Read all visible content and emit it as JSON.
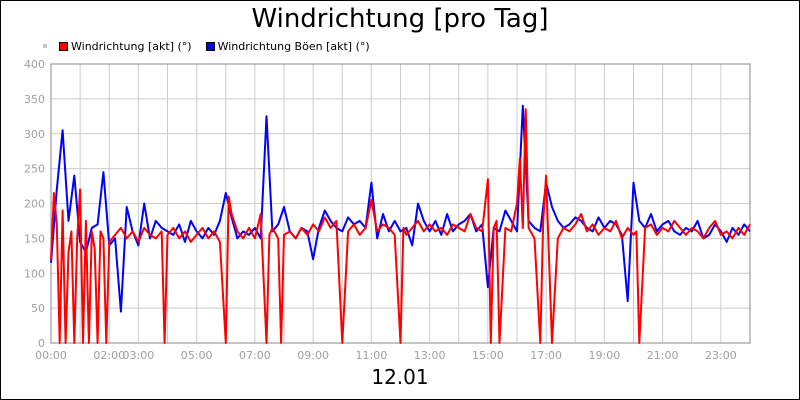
{
  "chart_data": {
    "type": "line",
    "title": "Windrichtung [pro Tag]",
    "xlabel": "12.01",
    "ylabel": "",
    "ylim": [
      0,
      400
    ],
    "yticks": [
      0,
      50,
      100,
      150,
      200,
      250,
      300,
      350,
      400
    ],
    "xlim": [
      "00:00",
      "24:00"
    ],
    "xtick_labels": [
      "00:00",
      "02:00",
      "03:00",
      "05:00",
      "07:00",
      "09:00",
      "11:00",
      "13:00",
      "15:00",
      "17:00",
      "19:00",
      "21:00",
      "23:00"
    ],
    "xtick_hours": [
      0,
      2,
      3,
      5,
      7,
      9,
      11,
      13,
      15,
      17,
      19,
      21,
      23
    ],
    "grid": true,
    "legend_position": "top-left",
    "series": [
      {
        "name": "Windrichtung [akt] (°)",
        "color": "#ff0000",
        "x": [
          0,
          0.1,
          0.2,
          0.3,
          0.4,
          0.5,
          0.6,
          0.7,
          0.8,
          0.9,
          1.0,
          1.1,
          1.2,
          1.3,
          1.4,
          1.5,
          1.6,
          1.7,
          1.8,
          1.9,
          2.0,
          2.2,
          2.4,
          2.6,
          2.8,
          3.0,
          3.2,
          3.4,
          3.6,
          3.8,
          3.9,
          4.0,
          4.2,
          4.4,
          4.6,
          4.8,
          5.0,
          5.2,
          5.4,
          5.6,
          5.8,
          6.0,
          6.1,
          6.2,
          6.4,
          6.6,
          6.8,
          7.0,
          7.2,
          7.4,
          7.5,
          7.6,
          7.8,
          7.9,
          8.0,
          8.2,
          8.4,
          8.6,
          8.8,
          9.0,
          9.2,
          9.4,
          9.6,
          9.8,
          10.0,
          10.2,
          10.4,
          10.6,
          10.8,
          11.0,
          11.2,
          11.4,
          11.6,
          11.8,
          12.0,
          12.1,
          12.2,
          12.4,
          12.6,
          12.8,
          13.0,
          13.2,
          13.4,
          13.6,
          13.8,
          14.0,
          14.2,
          14.4,
          14.6,
          14.8,
          15.0,
          15.1,
          15.2,
          15.3,
          15.4,
          15.6,
          15.8,
          16.0,
          16.1,
          16.2,
          16.3,
          16.4,
          16.6,
          16.8,
          16.9,
          17.0,
          17.2,
          17.4,
          17.6,
          17.8,
          18.0,
          18.2,
          18.4,
          18.6,
          18.8,
          19.0,
          19.2,
          19.4,
          19.6,
          19.8,
          20.0,
          20.1,
          20.2,
          20.4,
          20.6,
          20.8,
          21.0,
          21.2,
          21.4,
          21.6,
          21.8,
          22.0,
          22.2,
          22.4,
          22.6,
          22.8,
          23.0,
          23.2,
          23.4,
          23.6,
          23.8,
          24.0
        ],
        "values": [
          120,
          215,
          170,
          0,
          190,
          0,
          130,
          160,
          0,
          150,
          220,
          0,
          175,
          0,
          160,
          135,
          0,
          160,
          150,
          0,
          145,
          155,
          165,
          150,
          160,
          145,
          165,
          155,
          150,
          160,
          0,
          155,
          165,
          150,
          160,
          145,
          155,
          165,
          150,
          160,
          145,
          0,
          210,
          185,
          160,
          150,
          165,
          150,
          185,
          0,
          155,
          165,
          150,
          0,
          155,
          160,
          150,
          165,
          155,
          170,
          160,
          180,
          165,
          175,
          0,
          160,
          170,
          155,
          165,
          205,
          160,
          170,
          165,
          155,
          0,
          165,
          155,
          165,
          175,
          160,
          170,
          160,
          165,
          155,
          170,
          165,
          160,
          185,
          165,
          160,
          235,
          0,
          165,
          175,
          0,
          165,
          160,
          200,
          265,
          165,
          335,
          165,
          150,
          0,
          175,
          240,
          0,
          150,
          165,
          160,
          170,
          185,
          160,
          170,
          155,
          165,
          160,
          175,
          150,
          165,
          155,
          160,
          0,
          165,
          170,
          155,
          165,
          160,
          175,
          165,
          155,
          165,
          160,
          150,
          165,
          175,
          155,
          160,
          150,
          165,
          155,
          170
        ]
      },
      {
        "name": "Windrichtung Böen [akt] (°)",
        "color": "#0000ff",
        "x": [
          0,
          0.2,
          0.4,
          0.6,
          0.8,
          1.0,
          1.2,
          1.4,
          1.6,
          1.8,
          2.0,
          2.2,
          2.4,
          2.6,
          2.8,
          3.0,
          3.2,
          3.4,
          3.6,
          3.8,
          4.0,
          4.2,
          4.4,
          4.6,
          4.8,
          5.0,
          5.2,
          5.4,
          5.6,
          5.8,
          6.0,
          6.2,
          6.4,
          6.6,
          6.8,
          7.0,
          7.2,
          7.4,
          7.6,
          7.8,
          8.0,
          8.2,
          8.4,
          8.6,
          8.8,
          9.0,
          9.2,
          9.4,
          9.6,
          9.8,
          10.0,
          10.2,
          10.4,
          10.6,
          10.8,
          11.0,
          11.2,
          11.4,
          11.6,
          11.8,
          12.0,
          12.2,
          12.4,
          12.6,
          12.8,
          13.0,
          13.2,
          13.4,
          13.6,
          13.8,
          14.0,
          14.2,
          14.4,
          14.6,
          14.8,
          15.0,
          15.2,
          15.4,
          15.6,
          15.8,
          16.0,
          16.2,
          16.4,
          16.6,
          16.8,
          17.0,
          17.2,
          17.4,
          17.6,
          17.8,
          18.0,
          18.2,
          18.4,
          18.6,
          18.8,
          19.0,
          19.2,
          19.4,
          19.6,
          19.8,
          20.0,
          20.2,
          20.4,
          20.6,
          20.8,
          21.0,
          21.2,
          21.4,
          21.6,
          21.8,
          22.0,
          22.2,
          22.4,
          22.6,
          22.8,
          23.0,
          23.2,
          23.4,
          23.6,
          23.8,
          24.0
        ],
        "values": [
          115,
          220,
          305,
          175,
          240,
          145,
          130,
          165,
          170,
          245,
          140,
          150,
          45,
          195,
          160,
          140,
          200,
          150,
          175,
          165,
          160,
          155,
          170,
          145,
          175,
          160,
          150,
          165,
          155,
          175,
          215,
          180,
          150,
          160,
          155,
          165,
          150,
          325,
          160,
          170,
          195,
          160,
          150,
          165,
          160,
          120,
          165,
          190,
          175,
          165,
          160,
          180,
          170,
          175,
          165,
          230,
          150,
          185,
          160,
          175,
          160,
          165,
          140,
          200,
          175,
          160,
          175,
          155,
          185,
          160,
          170,
          175,
          185,
          160,
          170,
          80,
          165,
          160,
          190,
          175,
          160,
          340,
          175,
          165,
          160,
          230,
          195,
          175,
          165,
          170,
          180,
          175,
          165,
          160,
          180,
          165,
          175,
          170,
          155,
          60,
          230,
          175,
          165,
          185,
          160,
          170,
          175,
          160,
          155,
          165,
          160,
          175,
          150,
          155,
          170,
          160,
          145,
          165,
          155,
          170,
          160
        ]
      }
    ]
  }
}
